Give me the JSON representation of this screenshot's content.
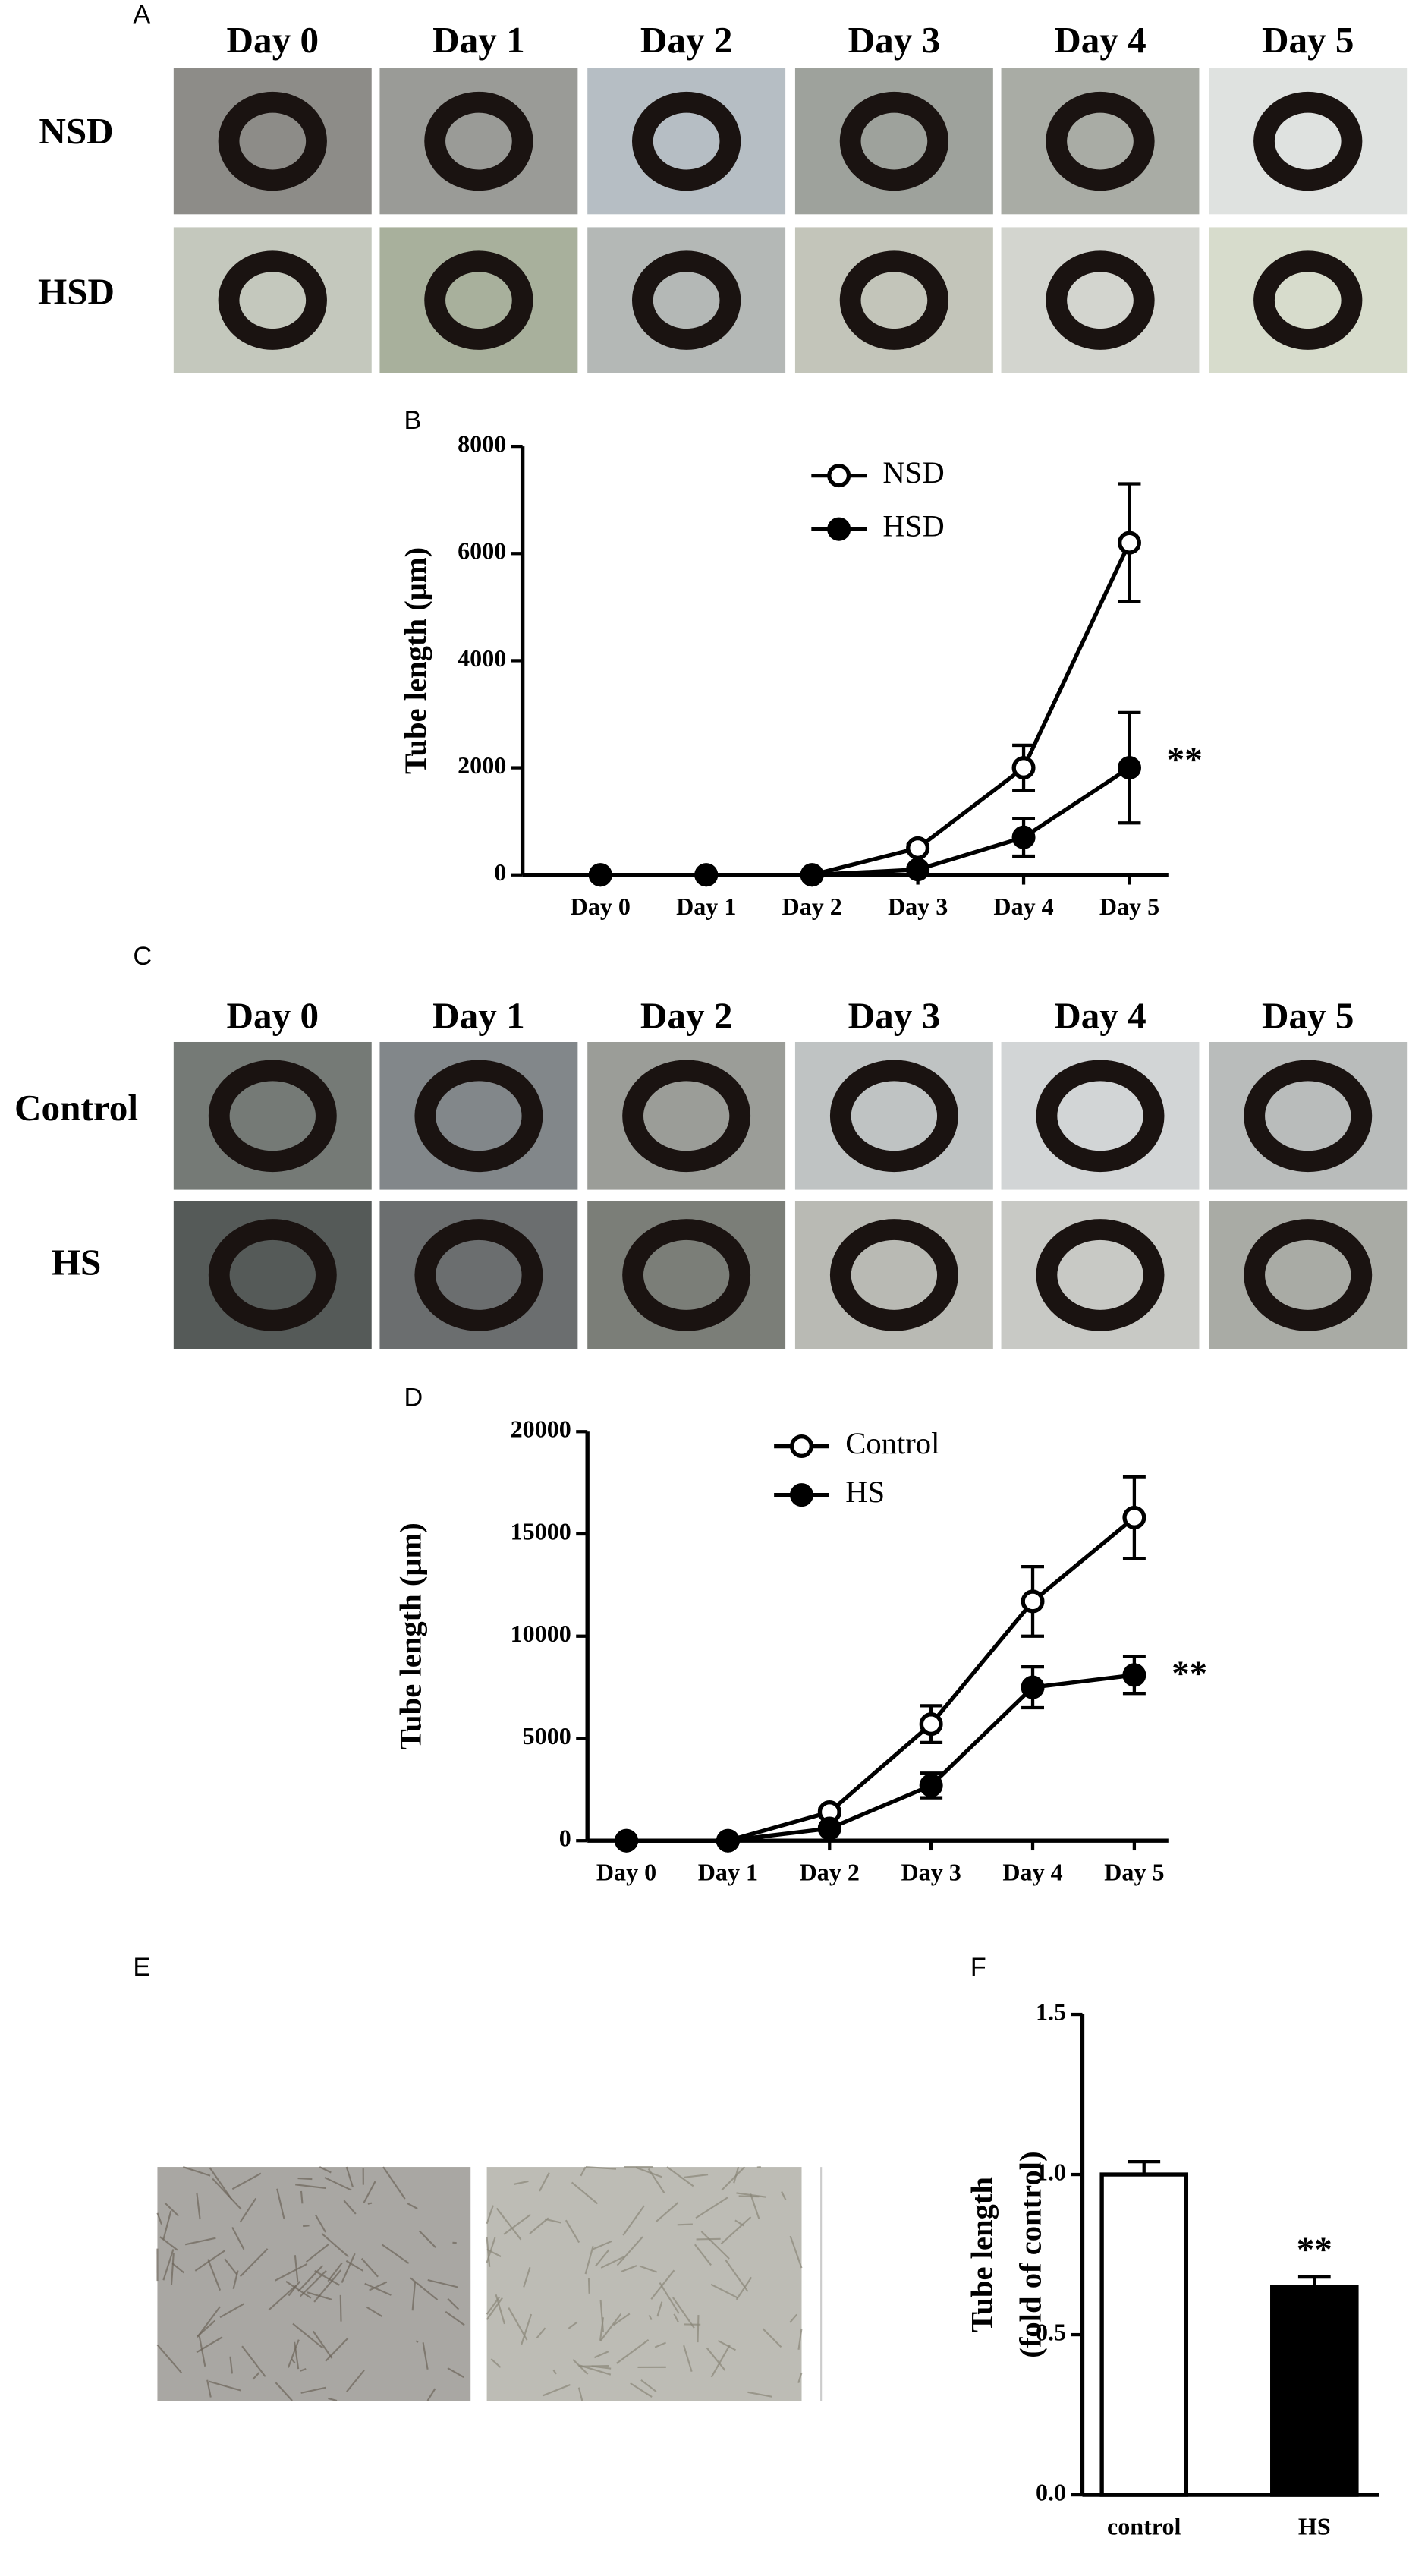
{
  "panel_labels": [
    "A",
    "B",
    "C",
    "D",
    "E",
    "F"
  ],
  "photo_grids": [
    {
      "columns": [
        "Day 0",
        "Day 1",
        "Day 2",
        "Day 3",
        "Day 4",
        "Day 5"
      ],
      "rows": [
        "NSD",
        "HSD"
      ]
    },
    {
      "columns": [
        "Day 0",
        "Day 1",
        "Day 2",
        "Day 3",
        "Day 4",
        "Day 5"
      ],
      "rows": [
        "Control",
        "HS"
      ]
    }
  ],
  "chart_data": [
    {
      "type": "line",
      "y_label": "Tube length (μm)",
      "categories": [
        "Day 0",
        "Day 1",
        "Day 2",
        "Day 3",
        "Day 4",
        "Day 5"
      ],
      "series": [
        {
          "name": "NSD",
          "color": "#000000",
          "marker": "open",
          "values": [
            0,
            0,
            0,
            500,
            2000,
            6200
          ],
          "errors": [
            0,
            0,
            0,
            60,
            420,
            1100
          ]
        },
        {
          "name": "HSD",
          "color": "#000000",
          "marker": "filled",
          "values": [
            0,
            0,
            0,
            100,
            700,
            2000
          ],
          "errors": [
            0,
            0,
            0,
            30,
            350,
            1030
          ]
        }
      ],
      "ylim": [
        0,
        8000
      ],
      "yticks": [
        0,
        2000,
        4000,
        6000,
        8000
      ],
      "annotation": "**"
    },
    {
      "type": "line",
      "y_label": "Tube length (μm)",
      "categories": [
        "Day 0",
        "Day 1",
        "Day 2",
        "Day 3",
        "Day 4",
        "Day 5"
      ],
      "series": [
        {
          "name": "Control",
          "color": "#000000",
          "marker": "open",
          "values": [
            0,
            0,
            1400,
            5700,
            11700,
            15800
          ],
          "errors": [
            0,
            0,
            150,
            900,
            1700,
            2000
          ]
        },
        {
          "name": "HS",
          "color": "#000000",
          "marker": "filled",
          "values": [
            0,
            0,
            600,
            2700,
            7500,
            8100
          ],
          "errors": [
            0,
            0,
            100,
            600,
            1000,
            900
          ]
        }
      ],
      "ylim": [
        0,
        20000
      ],
      "yticks": [
        0,
        5000,
        10000,
        15000,
        20000
      ],
      "annotation": "**"
    },
    {
      "type": "bar",
      "y_label": [
        "Tube length",
        "(fold of control)"
      ],
      "categories": [
        "control",
        "HS"
      ],
      "values": [
        1.0,
        0.65
      ],
      "errors": [
        0.04,
        0.03
      ],
      "colors": [
        "#ffffff",
        "#000000"
      ],
      "ylim": [
        0,
        1.5
      ],
      "yticks": [
        {
          "value": 0,
          "label": "0.0"
        },
        {
          "value": 0.5,
          "label": "0.5"
        },
        {
          "value": 1,
          "label": "1.0"
        },
        {
          "value": 1.5,
          "label": "1.5"
        }
      ],
      "annotation": "**"
    }
  ]
}
